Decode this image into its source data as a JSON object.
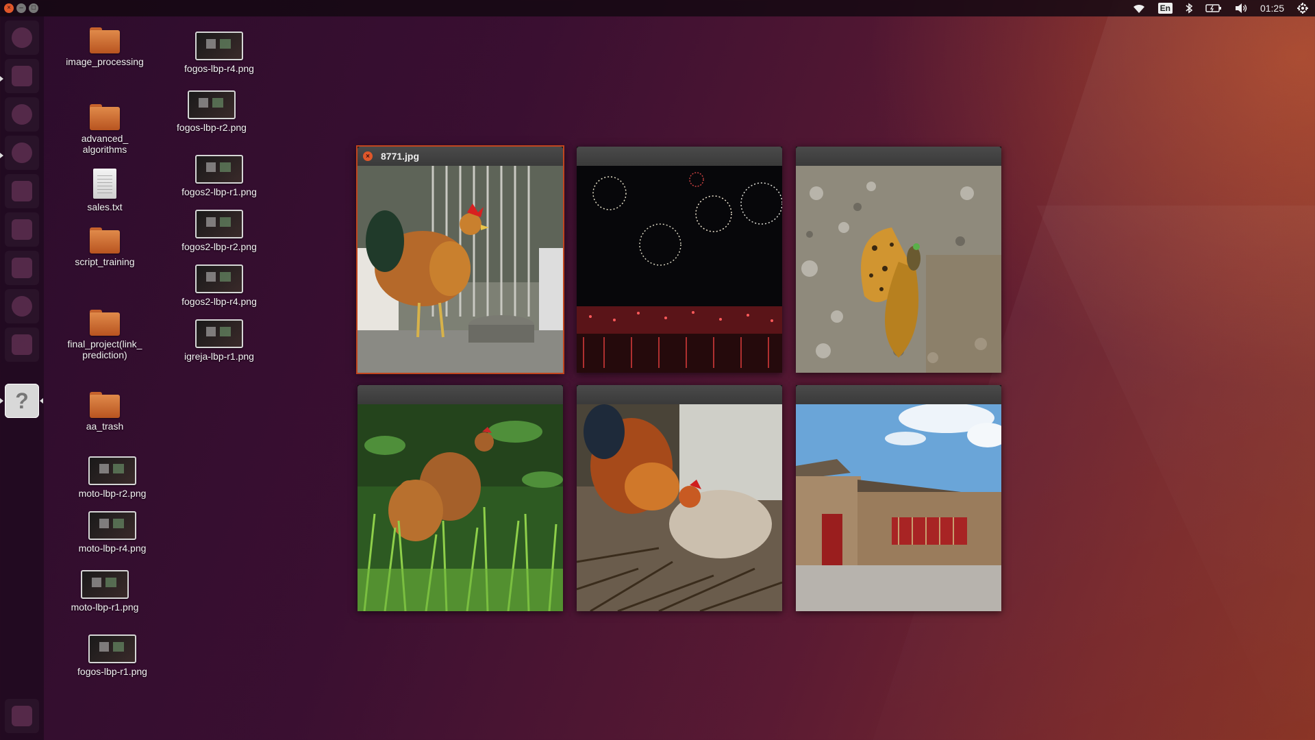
{
  "top_panel": {
    "clock": "01:25",
    "keyboard_layout": "En",
    "icons": [
      "wifi-icon",
      "keyboard-layout-icon",
      "bluetooth-icon",
      "battery-icon",
      "volume-icon",
      "clock",
      "settings-gear-icon"
    ]
  },
  "window_controls": {
    "close": "×",
    "minimize": "–",
    "maximize": "□"
  },
  "launcher": {
    "items": [
      {
        "icon": "dash-home-icon"
      },
      {
        "icon": "files-icon"
      },
      {
        "icon": "chromium-icon"
      },
      {
        "icon": "firefox-icon"
      },
      {
        "icon": "libreoffice-icon"
      },
      {
        "icon": "drive-icon"
      },
      {
        "icon": "drive-icon"
      },
      {
        "icon": "system-settings-icon"
      },
      {
        "icon": "downloads-icon"
      },
      {
        "icon": "image-viewer-icon",
        "glyph": "?"
      },
      {
        "icon": "trash-icon"
      }
    ]
  },
  "desktop_icons": {
    "image_processing": "image_processing",
    "advanced_algorithms": "advanced_\nalgorithms",
    "sales_txt": "sales.txt",
    "script_training": "script_training",
    "final_project": "final_project(link_\nprediction)",
    "aa_trash": "aa_trash",
    "moto_lbp_r2": "moto-lbp-r2.png",
    "moto_lbp_r4": "moto-lbp-r4.png",
    "moto_lbp_r1": "moto-lbp-r1.png",
    "fogos_lbp_r1": "fogos-lbp-r1.png",
    "fogos_lbp_r4": "fogos-lbp-r4.png",
    "fogos_lbp_r2": "fogos-lbp-r2.png",
    "fogos2_lbp_r1": "fogos2-lbp-r1.png",
    "fogos2_lbp_r2": "fogos2-lbp-r2.png",
    "fogos2_lbp_r4": "fogos2-lbp-r4.png",
    "igreja_lbp_r1": "igreja-lbp-r1.png"
  },
  "spread_windows": [
    {
      "title": "8771.jpg",
      "focused": true,
      "image": "rooster-by-cage-photo"
    },
    {
      "title": "",
      "focused": false,
      "image": "fireworks-over-water-photo"
    },
    {
      "title": "",
      "focused": false,
      "image": "butterfly-on-gravel-photo"
    },
    {
      "title": "",
      "focused": false,
      "image": "hens-in-grass-photo"
    },
    {
      "title": "",
      "focused": false,
      "image": "rooster-pecking-photo"
    },
    {
      "title": "",
      "focused": false,
      "image": "chinese-temple-street-photo"
    }
  ],
  "colors": {
    "accent_close": "#e0572a",
    "focus_border": "#c2451e",
    "folder": "#d6783a"
  }
}
